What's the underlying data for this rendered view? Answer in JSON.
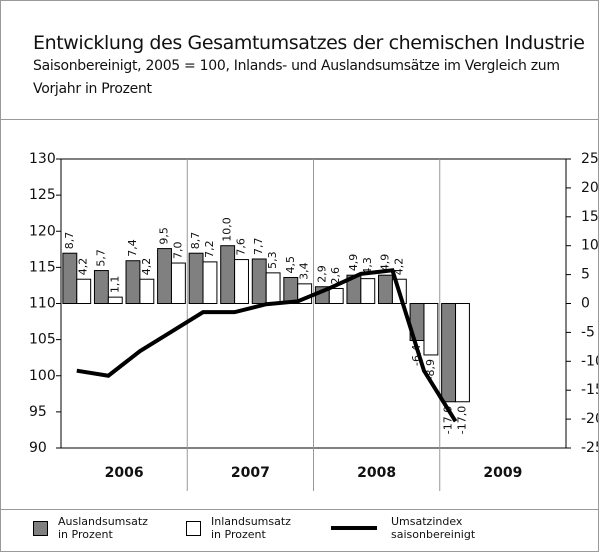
{
  "chart_data": {
    "type": "bar_line",
    "title": "Entwicklung des Gesamtumsatzes der chemischen Industrie",
    "subtitle": "Saisonbereinigt, 2005 = 100, Inlands- und Auslandsumsätze im Vergleich zum Vorjahr in Prozent",
    "categories": [
      null,
      null,
      null,
      null,
      null,
      null,
      null,
      null,
      null,
      null,
      null,
      null,
      null,
      null,
      null,
      null
    ],
    "year_labels": [
      "2006",
      "2007",
      "2008",
      "2009"
    ],
    "ylim": [
      90,
      130
    ],
    "yticks": [
      90,
      95,
      100,
      105,
      110,
      115,
      120,
      125,
      130
    ],
    "y2lim": [
      -25,
      25
    ],
    "y2ticks": [
      -25,
      -20,
      -15,
      -10,
      -5,
      0,
      5,
      10,
      15,
      20,
      25
    ],
    "series": [
      {
        "name": "Auslandsumsatz in Prozent",
        "color": "#808080",
        "axis": "y2",
        "kind": "bar",
        "values": [
          8.7,
          5.7,
          7.4,
          9.5,
          8.7,
          10.0,
          7.7,
          4.5,
          2.9,
          4.9,
          4.9,
          -6.4,
          -17.0,
          null,
          null,
          null
        ],
        "value_labels": [
          "8,7",
          "5,7",
          "7,4",
          "9,5",
          "8,7",
          "10,0",
          "7,7",
          "4,5",
          "2,9",
          "4,9",
          "4,9",
          "-6,4",
          "-17,0",
          null,
          null,
          null
        ]
      },
      {
        "name": "Inlandsumsatz in Prozent",
        "color": "#ffffff",
        "axis": "y2",
        "kind": "bar",
        "values": [
          4.2,
          1.1,
          4.2,
          7.0,
          7.2,
          7.6,
          5.3,
          3.4,
          2.6,
          4.3,
          4.2,
          -8.9,
          -17.0,
          null,
          null,
          null
        ],
        "value_labels": [
          "4,2",
          "1,1",
          "4,2",
          "7,0",
          "7,2",
          "7,6",
          "5,3",
          "3,4",
          "2,6",
          "4,3",
          "4,2",
          "-8,9",
          "-17,0",
          null,
          null,
          null
        ]
      },
      {
        "name": "Umsatzindex saisonbereinigt",
        "color": "#000000",
        "axis": "y",
        "kind": "line",
        "values": [
          100.7,
          100.0,
          103.4,
          106.1,
          108.8,
          108.8,
          109.9,
          110.3,
          112.1,
          114.1,
          114.6,
          100.7,
          93.7,
          null,
          null,
          null
        ]
      }
    ]
  }
}
